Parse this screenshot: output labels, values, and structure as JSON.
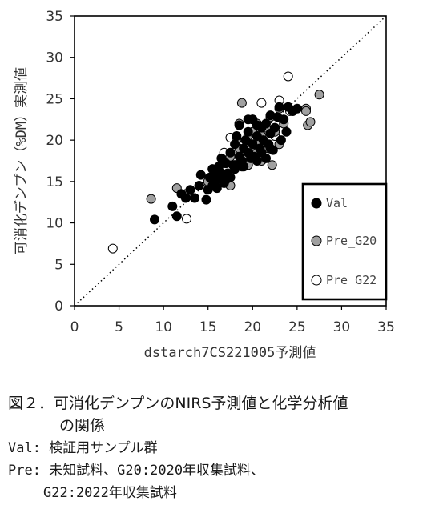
{
  "chart_data": {
    "type": "scatter",
    "xlabel": "dstarch7CS221005予測値",
    "ylabel": "可消化デンプン（%DM）実測値",
    "xlim": [
      0,
      35
    ],
    "ylim": [
      0,
      35
    ],
    "xticks": [
      "0",
      "5",
      "10",
      "15",
      "20",
      "25",
      "30",
      "35"
    ],
    "yticks": [
      "0",
      "5",
      "10",
      "15",
      "20",
      "25",
      "30",
      "35"
    ],
    "reference_line": "1:1 dotted diagonal",
    "legend_position": "lower-right",
    "series": [
      {
        "name": "Val",
        "marker": "filled-black",
        "points": [
          [
            9.0,
            10.4
          ],
          [
            11.0,
            12.0
          ],
          [
            11.5,
            10.8
          ],
          [
            12.0,
            13.5
          ],
          [
            12.5,
            13.0
          ],
          [
            13.0,
            14.0
          ],
          [
            13.5,
            13.0
          ],
          [
            14.0,
            14.5
          ],
          [
            14.2,
            15.8
          ],
          [
            14.8,
            12.8
          ],
          [
            15.0,
            14.0
          ],
          [
            15.2,
            15.5
          ],
          [
            15.5,
            14.5
          ],
          [
            15.8,
            16.0
          ],
          [
            16.0,
            15.2
          ],
          [
            16.2,
            16.8
          ],
          [
            16.5,
            16.0
          ],
          [
            16.8,
            14.8
          ],
          [
            17.0,
            17.2
          ],
          [
            17.2,
            16.0
          ],
          [
            17.5,
            15.5
          ],
          [
            17.5,
            18.5
          ],
          [
            17.8,
            17.0
          ],
          [
            18.0,
            16.5
          ],
          [
            18.0,
            19.5
          ],
          [
            18.2,
            20.5
          ],
          [
            18.5,
            18.0
          ],
          [
            18.5,
            21.8
          ],
          [
            18.8,
            17.5
          ],
          [
            19.0,
            19.0
          ],
          [
            19.0,
            16.8
          ],
          [
            19.2,
            20.0
          ],
          [
            19.5,
            18.5
          ],
          [
            19.5,
            21.0
          ],
          [
            19.8,
            17.8
          ],
          [
            20.0,
            19.5
          ],
          [
            20.0,
            22.5
          ],
          [
            20.2,
            18.0
          ],
          [
            20.5,
            20.5
          ],
          [
            20.5,
            17.5
          ],
          [
            20.8,
            19.0
          ],
          [
            21.0,
            21.5
          ],
          [
            21.0,
            18.5
          ],
          [
            21.2,
            20.0
          ],
          [
            21.5,
            22.0
          ],
          [
            21.5,
            17.8
          ],
          [
            21.8,
            19.5
          ],
          [
            22.0,
            20.8
          ],
          [
            22.0,
            23.0
          ],
          [
            22.3,
            18.8
          ],
          [
            22.5,
            21.5
          ],
          [
            22.8,
            22.8
          ],
          [
            23.0,
            24.0
          ],
          [
            23.2,
            20.0
          ],
          [
            23.5,
            22.5
          ],
          [
            24.0,
            24.0
          ],
          [
            24.5,
            23.5
          ],
          [
            25.0,
            23.8
          ],
          [
            23.8,
            21.0
          ],
          [
            16.5,
            17.8
          ],
          [
            17.0,
            15.2
          ],
          [
            18.0,
            17.0
          ],
          [
            19.5,
            22.5
          ],
          [
            20.5,
            21.8
          ],
          [
            15.5,
            16.5
          ],
          [
            16.0,
            14.2
          ],
          [
            22.0,
            19.0
          ]
        ]
      },
      {
        "name": "Pre_G20",
        "marker": "filled-gray",
        "points": [
          [
            8.6,
            12.9
          ],
          [
            11.5,
            14.2
          ],
          [
            12.5,
            13.5
          ],
          [
            15.0,
            15.0
          ],
          [
            15.5,
            16.5
          ],
          [
            16.5,
            15.5
          ],
          [
            17.0,
            17.5
          ],
          [
            17.5,
            14.5
          ],
          [
            17.5,
            18.0
          ],
          [
            18.0,
            17.0
          ],
          [
            18.2,
            20.0
          ],
          [
            18.5,
            19.0
          ],
          [
            18.5,
            22.0
          ],
          [
            18.8,
            24.5
          ],
          [
            19.0,
            18.0
          ],
          [
            19.5,
            17.0
          ],
          [
            19.5,
            20.5
          ],
          [
            20.0,
            21.0
          ],
          [
            20.2,
            18.5
          ],
          [
            20.5,
            22.0
          ],
          [
            20.8,
            19.5
          ],
          [
            21.0,
            20.5
          ],
          [
            21.0,
            17.5
          ],
          [
            21.5,
            21.5
          ],
          [
            21.8,
            19.0
          ],
          [
            22.0,
            22.8
          ],
          [
            22.2,
            17.0
          ],
          [
            22.5,
            21.0
          ],
          [
            23.0,
            19.5
          ],
          [
            23.0,
            23.8
          ],
          [
            23.5,
            22.0
          ],
          [
            24.5,
            23.5
          ],
          [
            26.0,
            23.8
          ],
          [
            26.0,
            23.5
          ],
          [
            26.2,
            21.8
          ],
          [
            26.5,
            22.2
          ],
          [
            27.5,
            25.5
          ],
          [
            16.0,
            16.2
          ],
          [
            18.8,
            16.8
          ],
          [
            20.5,
            18.5
          ]
        ]
      },
      {
        "name": "Pre_G22",
        "marker": "open-circle",
        "points": [
          [
            4.3,
            6.9
          ],
          [
            12.6,
            10.5
          ],
          [
            16.8,
            18.5
          ],
          [
            17.5,
            20.3
          ],
          [
            19.0,
            19.8
          ],
          [
            20.0,
            22.5
          ],
          [
            20.8,
            21.5
          ],
          [
            21.0,
            24.5
          ],
          [
            22.5,
            20.5
          ],
          [
            23.0,
            24.8
          ],
          [
            24.0,
            27.7
          ],
          [
            24.2,
            23.5
          ]
        ]
      }
    ]
  },
  "caption": {
    "title_line1": "図２．可消化デンプンのNIRS予測値と化学分析値",
    "title_line2": "の関係",
    "note_val": "Val: 検証用サンプル群",
    "note_pre1": "Pre: 未知試料、G20:2020年収集試料、",
    "note_pre2": "G22:2022年収集試料"
  },
  "colors": {
    "val_fill": "#000000",
    "g20_fill": "#a0a0a0",
    "g22_fill": "#ffffff",
    "marker_stroke": "#000000",
    "axis": "#000000"
  }
}
